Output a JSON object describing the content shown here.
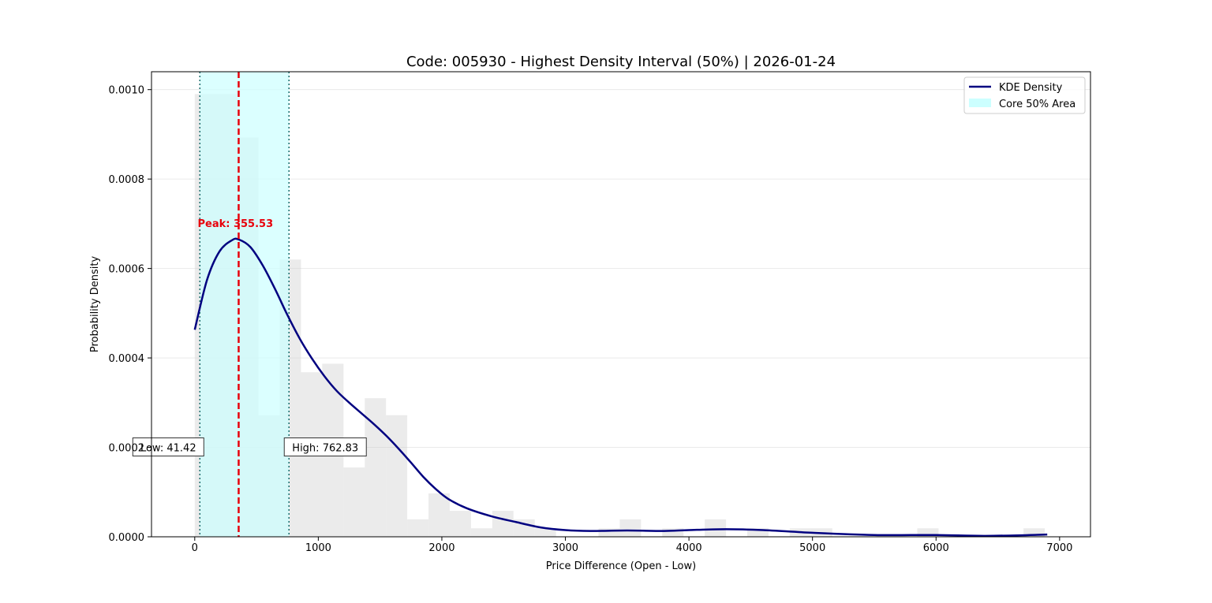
{
  "chart_data": {
    "type": "histogram+kde",
    "title": "Code: 005930 - Highest Density Interval (50%) | 2026-01-24",
    "xlabel": "Price Difference (Open - Low)",
    "ylabel": "Probability Density",
    "xlim": [
      -350,
      7250
    ],
    "ylim": [
      0,
      0.00104
    ],
    "xticks": [
      0,
      1000,
      2000,
      3000,
      4000,
      5000,
      6000,
      7000
    ],
    "yticks": [
      0.0,
      0.0002,
      0.0004,
      0.0006,
      0.0008,
      0.001
    ],
    "ytick_labels": [
      "0.0000",
      "0.0002",
      "0.0004",
      "0.0006",
      "0.0008",
      "0.0010"
    ],
    "grid": "horizontal",
    "legend": {
      "position": "top-right",
      "entries": [
        {
          "label": "KDE Density",
          "color": "#000080",
          "kind": "line"
        },
        {
          "label": "Core 50% Area",
          "color": "#ccffff",
          "kind": "patch"
        }
      ]
    },
    "histogram": {
      "color": "#d3d3d3",
      "bins": [
        {
          "x0": 0,
          "x1": 172,
          "density": 0.00099
        },
        {
          "x0": 172,
          "x1": 344,
          "density": 0.00099
        },
        {
          "x0": 344,
          "x1": 516,
          "density": 0.000893
        },
        {
          "x0": 516,
          "x1": 688,
          "density": 0.000272
        },
        {
          "x0": 688,
          "x1": 860,
          "density": 0.00062
        },
        {
          "x0": 860,
          "x1": 1032,
          "density": 0.000368
        },
        {
          "x0": 1032,
          "x1": 1204,
          "density": 0.000387
        },
        {
          "x0": 1204,
          "x1": 1376,
          "density": 0.000155
        },
        {
          "x0": 1376,
          "x1": 1548,
          "density": 0.00031
        },
        {
          "x0": 1548,
          "x1": 1720,
          "density": 0.000272
        },
        {
          "x0": 1720,
          "x1": 1892,
          "density": 3.9e-05
        },
        {
          "x0": 1892,
          "x1": 2064,
          "density": 9.7e-05
        },
        {
          "x0": 2064,
          "x1": 2236,
          "density": 5.8e-05
        },
        {
          "x0": 2236,
          "x1": 2408,
          "density": 1.9e-05
        },
        {
          "x0": 2408,
          "x1": 2580,
          "density": 5.8e-05
        },
        {
          "x0": 2580,
          "x1": 2752,
          "density": 3.9e-05
        },
        {
          "x0": 2752,
          "x1": 2924,
          "density": 1.9e-05
        },
        {
          "x0": 3268,
          "x1": 3440,
          "density": 1.9e-05
        },
        {
          "x0": 3440,
          "x1": 3612,
          "density": 3.9e-05
        },
        {
          "x0": 3784,
          "x1": 3956,
          "density": 1.9e-05
        },
        {
          "x0": 4128,
          "x1": 4300,
          "density": 3.9e-05
        },
        {
          "x0": 4472,
          "x1": 4644,
          "density": 1.9e-05
        },
        {
          "x0": 4816,
          "x1": 4988,
          "density": 1.9e-05
        },
        {
          "x0": 4988,
          "x1": 5160,
          "density": 1.9e-05
        },
        {
          "x0": 5848,
          "x1": 6020,
          "density": 1.9e-05
        },
        {
          "x0": 6708,
          "x1": 6880,
          "density": 1.9e-05
        }
      ]
    },
    "kde": {
      "label": "KDE Density",
      "color": "#000080",
      "x": [
        0,
        100,
        200,
        300,
        355,
        450,
        550,
        650,
        750,
        850,
        950,
        1050,
        1150,
        1250,
        1350,
        1450,
        1550,
        1650,
        1750,
        1850,
        1950,
        2050,
        2200,
        2400,
        2600,
        2800,
        3000,
        3200,
        3500,
        3800,
        4000,
        4300,
        4600,
        5000,
        5500,
        6000,
        6400,
        6900
      ],
      "y": [
        0.000463,
        0.000575,
        0.000638,
        0.000663,
        0.000665,
        0.000648,
        0.000607,
        0.000554,
        0.000496,
        0.000443,
        0.000398,
        0.000359,
        0.000326,
        0.0003,
        0.000276,
        0.000252,
        0.000226,
        0.000197,
        0.000166,
        0.000134,
        0.000107,
        8.5e-05,
        6.4e-05,
        4.6e-05,
        3.3e-05,
        2.1e-05,
        1.5e-05,
        1.3e-05,
        1.4e-05,
        1.3e-05,
        1.5e-05,
        1.7e-05,
        1.5e-05,
        9e-06,
        4e-06,
        4e-06,
        2e-06,
        5e-06
      ]
    },
    "hdi": {
      "low": 41.42,
      "high": 762.83,
      "peak": 355.53,
      "fill_color": "#ccffff",
      "low_label": "Low: 41.42",
      "high_label": "High: 762.83",
      "peak_label": "Peak: 355.53",
      "low_label_y": 0.0002,
      "high_label_y": 0.0002,
      "peak_label_y": 0.0007
    }
  }
}
